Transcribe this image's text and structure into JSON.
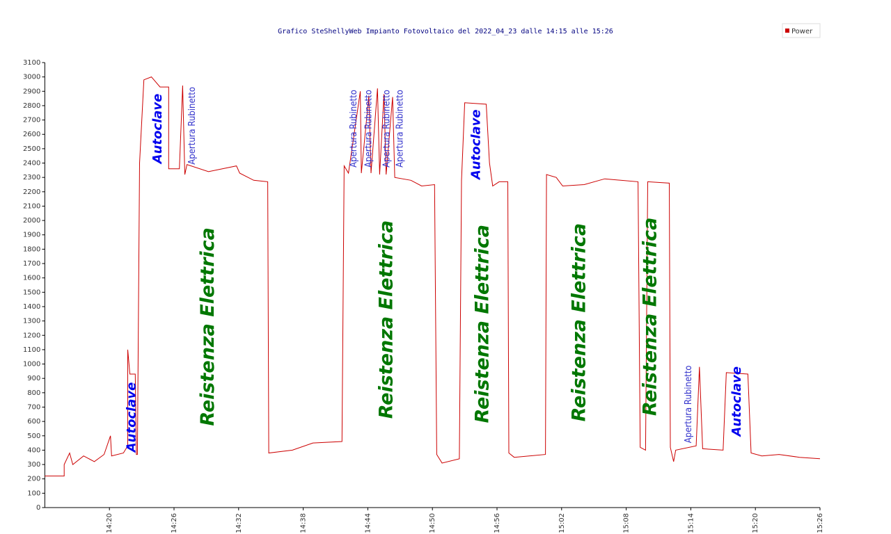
{
  "chart_data": {
    "type": "line",
    "title": "Grafico SteShellyWeb Impianto Fotovoltaico del 2022_04_23 dalle 14:15 alle 15:26",
    "legend": "upper right",
    "grid": false,
    "xlim": [
      854,
      926
    ],
    "ylim": [
      0,
      3100
    ],
    "xticks": [
      {
        "value": 860,
        "label": "14:20"
      },
      {
        "value": 866,
        "label": "14:26"
      },
      {
        "value": 872,
        "label": "14:32"
      },
      {
        "value": 878,
        "label": "14:38"
      },
      {
        "value": 884,
        "label": "14:44"
      },
      {
        "value": 890,
        "label": "14:50"
      },
      {
        "value": 896,
        "label": "14:56"
      },
      {
        "value": 902,
        "label": "15:02"
      },
      {
        "value": 908,
        "label": "15:08"
      },
      {
        "value": 914,
        "label": "15:14"
      },
      {
        "value": 920,
        "label": "15:20"
      },
      {
        "value": 926,
        "label": "15:26"
      }
    ],
    "yticks": [
      0,
      100,
      200,
      300,
      400,
      500,
      600,
      700,
      800,
      900,
      1000,
      1100,
      1200,
      1300,
      1400,
      1500,
      1600,
      1700,
      1800,
      1900,
      2000,
      2100,
      2200,
      2300,
      2400,
      2500,
      2600,
      2700,
      2800,
      2900,
      3000,
      3100
    ],
    "series": [
      {
        "name": "Power",
        "color": "#cc0000",
        "x": [
          854,
          855.8,
          855.8,
          856.3,
          856.6,
          857.6,
          858.6,
          859.5,
          860.1,
          860.2,
          861.3,
          861.7,
          861.7,
          861.9,
          862.4,
          862.5,
          862.6,
          862.8,
          863.2,
          863.9,
          864.7,
          865.5,
          865.5,
          866.5,
          866.8,
          867.0,
          867.2,
          869.2,
          871.8,
          872.1,
          873.4,
          874.7,
          874.8,
          877,
          878.9,
          881.6,
          881.8,
          882.2,
          883.3,
          883.4,
          884.1,
          884.3,
          884.9,
          885.1,
          885.5,
          885.7,
          886.3,
          886.5,
          888,
          889,
          890.2,
          890.4,
          890.9,
          892.5,
          892.7,
          893,
          895,
          895.3,
          895.6,
          896.2,
          897,
          897.1,
          897.6,
          900.5,
          900.6,
          901.5,
          902.1,
          904.1,
          906,
          909.1,
          909.3,
          909.8,
          910,
          912,
          912.1,
          912.4,
          912.6,
          914.5,
          914.8,
          915.1,
          917,
          917.3,
          919.3,
          919.6,
          920.6,
          922.2,
          924.1,
          926
        ],
        "values": [
          220,
          220,
          300,
          380,
          300,
          360,
          320,
          370,
          500,
          360,
          380,
          430,
          1100,
          930,
          930,
          370,
          370,
          2400,
          2980,
          3000,
          2930,
          2930,
          2360,
          2360,
          2940,
          2320,
          2390,
          2340,
          2380,
          2330,
          2280,
          2270,
          380,
          400,
          450,
          460,
          2380,
          2330,
          2900,
          2330,
          2870,
          2330,
          2920,
          2320,
          2880,
          2320,
          2860,
          2300,
          2280,
          2240,
          2250,
          370,
          310,
          340,
          2280,
          2820,
          2810,
          2400,
          2240,
          2270,
          2270,
          380,
          350,
          370,
          2320,
          2300,
          2240,
          2250,
          2290,
          2270,
          420,
          400,
          2270,
          2260,
          420,
          320,
          400,
          430,
          980,
          410,
          400,
          940,
          930,
          380,
          360,
          370,
          350,
          340
        ]
      }
    ],
    "annotations": [
      {
        "text": "Autoclave",
        "x": 862.1,
        "y": 630,
        "color": "#0000ee",
        "fontsize": 18,
        "style": "bold"
      },
      {
        "text": "Autoclave",
        "x": 864.5,
        "y": 2640,
        "color": "#0000ee",
        "fontsize": 18,
        "style": "bold"
      },
      {
        "text": "Apertura Rubinetto",
        "x": 867.7,
        "y": 2660,
        "color": "#3333cc",
        "fontsize": 13,
        "style": "normal"
      },
      {
        "text": "Reistenza Elettrica",
        "x": 869.2,
        "y": 1260,
        "color": "#007700",
        "fontsize": 27,
        "style": "bold"
      },
      {
        "text": "Apertura Rubinetto",
        "x": 882.7,
        "y": 2640,
        "color": "#3333cc",
        "fontsize": 13,
        "style": "normal"
      },
      {
        "text": "Apertura Rubinetto",
        "x": 884.1,
        "y": 2640,
        "color": "#3333cc",
        "fontsize": 13,
        "style": "normal"
      },
      {
        "text": "Apertura Rubinetto",
        "x": 885.8,
        "y": 2640,
        "color": "#3333cc",
        "fontsize": 13,
        "style": "normal"
      },
      {
        "text": "Apertura Rubinetto",
        "x": 887.0,
        "y": 2640,
        "color": "#3333cc",
        "fontsize": 13,
        "style": "normal"
      },
      {
        "text": "Reistenza Elettrica",
        "x": 885.8,
        "y": 1310,
        "color": "#007700",
        "fontsize": 27,
        "style": "bold"
      },
      {
        "text": "Autoclave",
        "x": 894.1,
        "y": 2530,
        "color": "#0000ee",
        "fontsize": 18,
        "style": "bold"
      },
      {
        "text": "Reistenza Elettrica",
        "x": 894.7,
        "y": 1280,
        "color": "#007700",
        "fontsize": 27,
        "style": "bold"
      },
      {
        "text": "Reistenza Elettrica",
        "x": 903.7,
        "y": 1290,
        "color": "#007700",
        "fontsize": 27,
        "style": "bold"
      },
      {
        "text": "Reistenza Elettrica",
        "x": 910.3,
        "y": 1330,
        "color": "#007700",
        "fontsize": 27,
        "style": "bold"
      },
      {
        "text": "Apertura Rubinetto",
        "x": 913.8,
        "y": 720,
        "color": "#3333cc",
        "fontsize": 13,
        "style": "normal"
      },
      {
        "text": "Autoclave",
        "x": 918.3,
        "y": 740,
        "color": "#0000ee",
        "fontsize": 18,
        "style": "bold"
      }
    ]
  }
}
